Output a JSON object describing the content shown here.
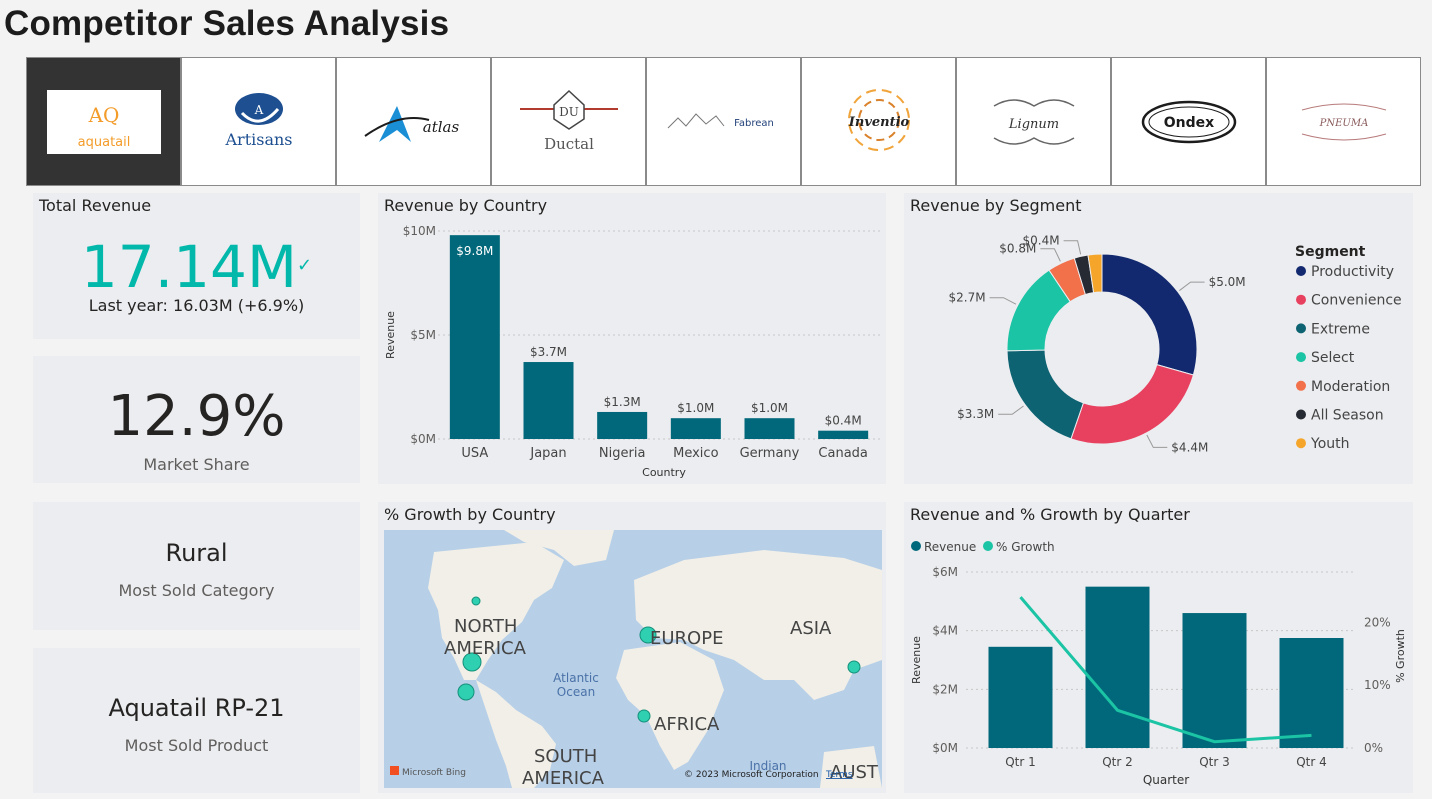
{
  "page": {
    "title": "Competitor Sales Analysis"
  },
  "logos": [
    {
      "name": "aquatail",
      "label": "aquatail",
      "mark": "AQ",
      "selected": true
    },
    {
      "name": "artisans",
      "label": "Artisans",
      "mark": "A"
    },
    {
      "name": "atlas",
      "label": "atlas"
    },
    {
      "name": "ductal",
      "label": "Ductal",
      "mark": "DU"
    },
    {
      "name": "fabrean",
      "label": "Fabrean"
    },
    {
      "name": "inventio",
      "label": "Inventio"
    },
    {
      "name": "lignum",
      "label": "Lignum"
    },
    {
      "name": "ondex",
      "label": "Ondex"
    },
    {
      "name": "pneuma",
      "label": "PNEUMA"
    }
  ],
  "total_revenue": {
    "title": "Total Revenue",
    "value": "17.14M",
    "indicator": "✓",
    "comparison": "Last year: 16.03M (+6.9%)",
    "accent": "#01b8aa"
  },
  "market_share": {
    "value": "12.9%",
    "label": "Market Share"
  },
  "most_sold_category": {
    "value": "Rural",
    "label": "Most Sold Category"
  },
  "most_sold_product": {
    "value": "Aquatail RP-21",
    "label": "Most Sold Product"
  },
  "revenue_by_country": {
    "title": "Revenue by Country",
    "chart_data": {
      "type": "bar",
      "categories": [
        "USA",
        "Japan",
        "Nigeria",
        "Mexico",
        "Germany",
        "Canada"
      ],
      "values": [
        9.8,
        3.7,
        1.3,
        1.0,
        1.0,
        0.4
      ],
      "data_labels": [
        "$9.8M",
        "$3.7M",
        "$1.3M",
        "$1.0M",
        "$1.0M",
        "$0.4M"
      ],
      "yticks": [
        0,
        5,
        10
      ],
      "ytick_labels": [
        "$0M",
        "$5M",
        "$10M"
      ],
      "ylim": [
        0,
        10
      ],
      "xlabel": "Country",
      "ylabel": "Revenue",
      "color": "#00687a"
    }
  },
  "revenue_by_segment": {
    "title": "Revenue by Segment",
    "legend_title": "Segment",
    "chart_data": {
      "type": "pie",
      "labels": [
        "Productivity",
        "Convenience",
        "Extreme",
        "Select",
        "Moderation",
        "All Season",
        "Youth"
      ],
      "values": [
        5.0,
        4.4,
        3.3,
        2.7,
        0.8,
        0.4,
        0.4
      ],
      "data_labels": [
        "$5.0M",
        "$4.4M",
        "$3.3M",
        "$2.7M",
        "$0.8M",
        "$0.4M",
        ""
      ],
      "colors": [
        "#12296f",
        "#e8415f",
        "#0e6372",
        "#1bc4a4",
        "#f2704a",
        "#262a33",
        "#f6a52b"
      ],
      "legend_position": "right"
    }
  },
  "growth_map": {
    "title": "% Growth by Country",
    "labels": {
      "na1": "NORTH",
      "na2": "AMERICA",
      "eu": "EUROPE",
      "asia": "ASIA",
      "af": "AFRICA",
      "sa1": "SOUTH",
      "sa2": "AMERICA",
      "ocean1": "Atlantic",
      "ocean2": "Ocean",
      "indian1": "Indian",
      "aust": "AUST"
    },
    "attribution": "© 2023 Microsoft Corporation",
    "terms": "Terms",
    "bing": "Microsoft Bing",
    "bubble_color": "#2fcfb1"
  },
  "revenue_growth_quarter": {
    "title": "Revenue and % Growth by Quarter",
    "chart_data": {
      "type": "bar",
      "categories": [
        "Qtr 1",
        "Qtr 2",
        "Qtr 3",
        "Qtr 4"
      ],
      "series": [
        {
          "name": "Revenue",
          "values": [
            3.45,
            5.5,
            4.6,
            3.75
          ],
          "color": "#00687a"
        },
        {
          "name": "% Growth",
          "values": [
            24,
            6,
            1,
            2
          ],
          "color": "#1bc4a4"
        }
      ],
      "yticks": [
        0,
        2,
        4,
        6
      ],
      "ytick_labels": [
        "$0M",
        "$2M",
        "$4M",
        "$6M"
      ],
      "ylim": [
        0,
        6
      ],
      "y2ticks": [
        0,
        10,
        20
      ],
      "y2tick_labels": [
        "0%",
        "10%",
        "20%"
      ],
      "y2lim": [
        0,
        28
      ],
      "xlabel": "Quarter",
      "ylabel": "Revenue",
      "y2label": "% Growth",
      "legend_position": "top-left"
    }
  }
}
